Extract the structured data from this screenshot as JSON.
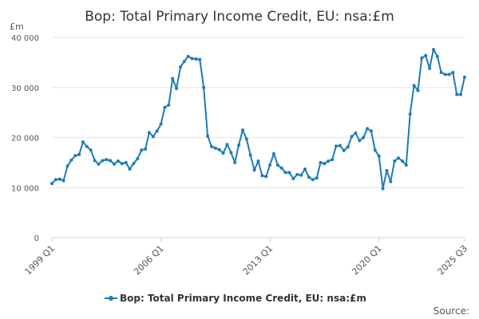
{
  "chart_data": {
    "type": "line",
    "title": "Bop: Total Primary Income Credit, EU: nsa:£m",
    "unit_label": "£m",
    "source_label": "Source:",
    "ylim": [
      0,
      40000
    ],
    "y_ticks": [
      {
        "value": 0,
        "label": "0"
      },
      {
        "value": 10000,
        "label": "10 000"
      },
      {
        "value": 20000,
        "label": "20 000"
      },
      {
        "value": 30000,
        "label": "30 000"
      },
      {
        "value": 40000,
        "label": "40 000"
      }
    ],
    "x_ticks": [
      "1999 Q1",
      "2006 Q1",
      "2013 Q1",
      "2020 Q1",
      "2025 Q3"
    ],
    "grid": true,
    "legend_position": "bottom-center",
    "color": "#1f7bb6",
    "series": [
      {
        "name": "Bop: Total Primary Income Credit, EU: nsa:£m",
        "x": [
          "1999 Q1",
          "1999 Q2",
          "1999 Q3",
          "1999 Q4",
          "2000 Q1",
          "2000 Q2",
          "2000 Q3",
          "2000 Q4",
          "2001 Q1",
          "2001 Q2",
          "2001 Q3",
          "2001 Q4",
          "2002 Q1",
          "2002 Q2",
          "2002 Q3",
          "2002 Q4",
          "2003 Q1",
          "2003 Q2",
          "2003 Q3",
          "2003 Q4",
          "2004 Q1",
          "2004 Q2",
          "2004 Q3",
          "2004 Q4",
          "2005 Q1",
          "2005 Q2",
          "2005 Q3",
          "2005 Q4",
          "2006 Q1",
          "2006 Q2",
          "2006 Q3",
          "2006 Q4",
          "2007 Q1",
          "2007 Q2",
          "2007 Q3",
          "2007 Q4",
          "2008 Q1",
          "2008 Q2",
          "2008 Q3",
          "2008 Q4",
          "2009 Q1",
          "2009 Q2",
          "2009 Q3",
          "2009 Q4",
          "2010 Q1",
          "2010 Q2",
          "2010 Q3",
          "2010 Q4",
          "2011 Q1",
          "2011 Q2",
          "2011 Q3",
          "2011 Q4",
          "2012 Q1",
          "2012 Q2",
          "2012 Q3",
          "2012 Q4",
          "2013 Q1",
          "2013 Q2",
          "2013 Q3",
          "2013 Q4",
          "2014 Q1",
          "2014 Q2",
          "2014 Q3",
          "2014 Q4",
          "2015 Q1",
          "2015 Q2",
          "2015 Q3",
          "2015 Q4",
          "2016 Q1",
          "2016 Q2",
          "2016 Q3",
          "2016 Q4",
          "2017 Q1",
          "2017 Q2",
          "2017 Q3",
          "2017 Q4",
          "2018 Q1",
          "2018 Q2",
          "2018 Q3",
          "2018 Q4",
          "2019 Q1",
          "2019 Q2",
          "2019 Q3",
          "2019 Q4",
          "2020 Q1",
          "2020 Q2",
          "2020 Q3",
          "2020 Q4",
          "2021 Q1",
          "2021 Q2",
          "2021 Q3",
          "2021 Q4",
          "2022 Q1",
          "2022 Q2",
          "2022 Q3",
          "2022 Q4",
          "2023 Q1",
          "2023 Q2",
          "2023 Q3",
          "2023 Q4",
          "2024 Q1",
          "2024 Q2",
          "2024 Q3",
          "2024 Q4",
          "2025 Q1",
          "2025 Q2",
          "2025 Q3"
        ],
        "values": [
          10800,
          11600,
          11700,
          11400,
          14300,
          15500,
          16400,
          16600,
          19100,
          18200,
          17500,
          15400,
          14700,
          15400,
          15600,
          15400,
          14700,
          15300,
          14800,
          15000,
          13700,
          14800,
          15800,
          17500,
          17700,
          21000,
          20200,
          21300,
          22700,
          26000,
          26500,
          31800,
          29800,
          34100,
          35200,
          36200,
          35800,
          35700,
          35600,
          30000,
          20300,
          18200,
          17900,
          17600,
          16900,
          18600,
          17000,
          15000,
          18500,
          21500,
          19700,
          16500,
          13500,
          15300,
          12400,
          12200,
          14500,
          16800,
          14500,
          13900,
          13000,
          13000,
          11800,
          12600,
          12500,
          13700,
          12100,
          11600,
          11900,
          15000,
          14800,
          15300,
          15600,
          18300,
          18400,
          17400,
          18100,
          20200,
          20900,
          19400,
          20000,
          21800,
          21300,
          17500,
          16300,
          9800,
          13400,
          11200,
          15300,
          15900,
          15300,
          14500,
          24700,
          30400,
          29400,
          35900,
          36400,
          33800,
          37600,
          36200,
          33000,
          32600,
          32600,
          33000,
          28600,
          28600,
          32100
        ]
      }
    ]
  }
}
